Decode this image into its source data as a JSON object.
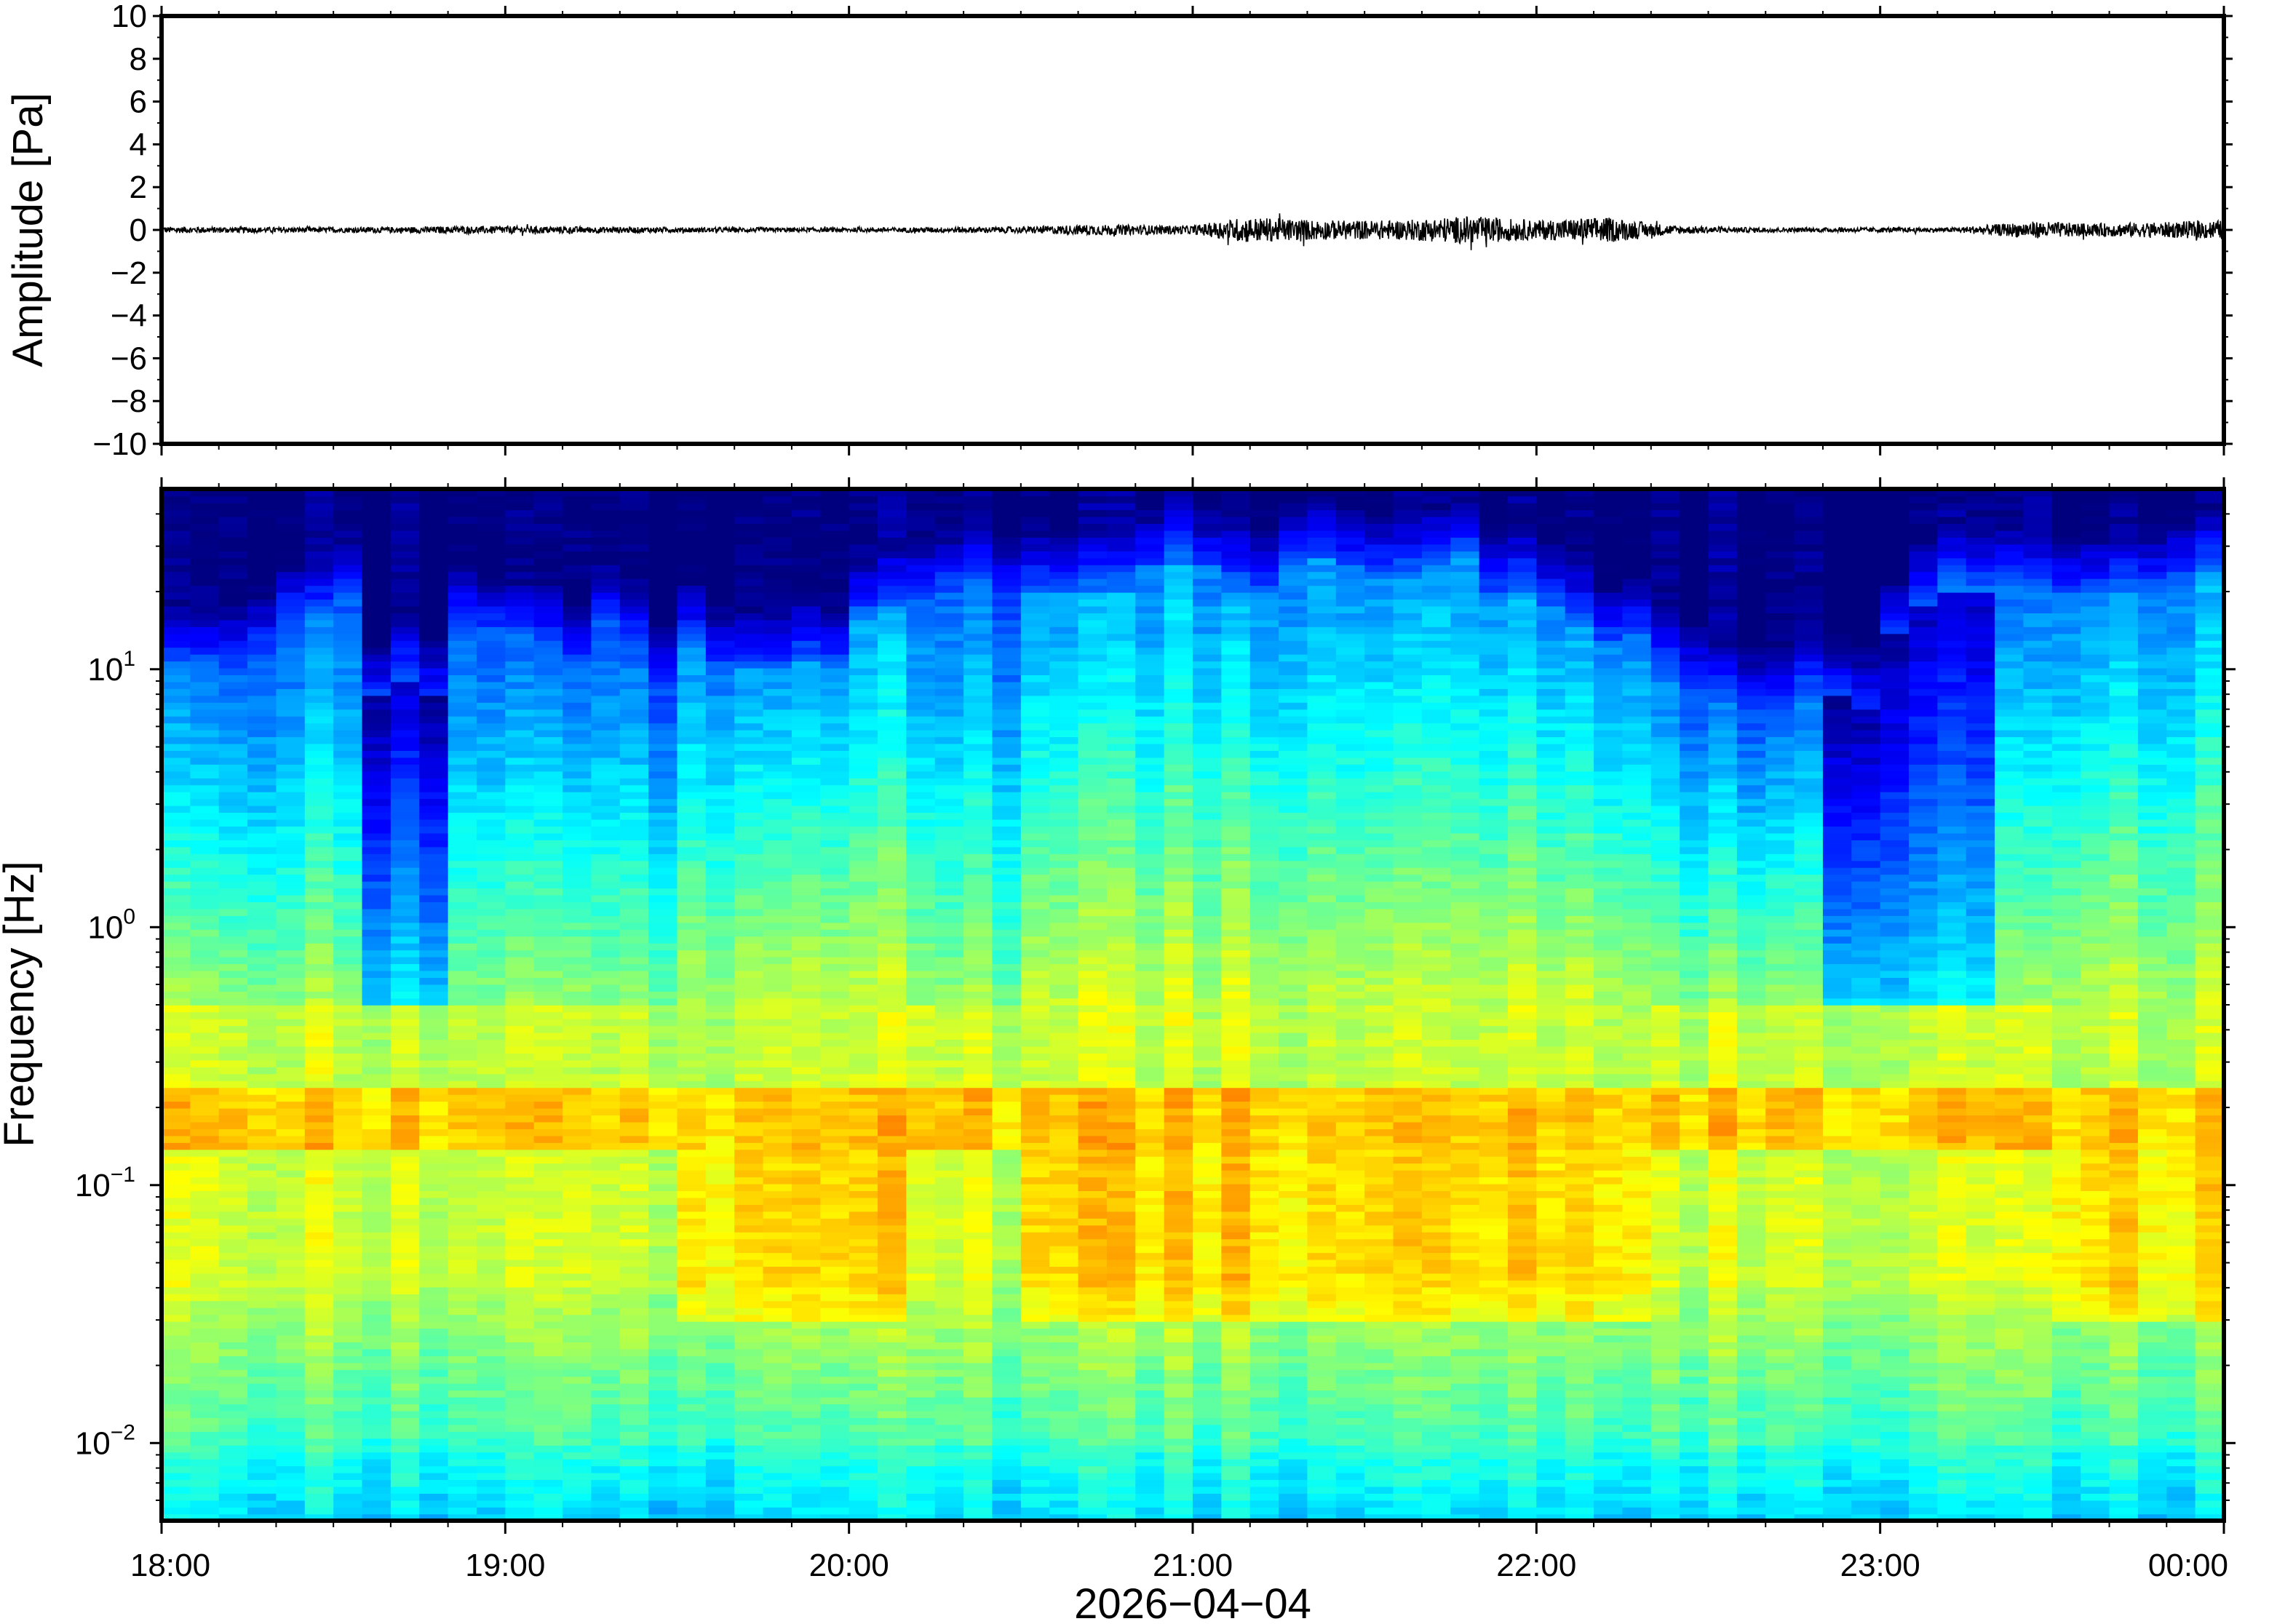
{
  "chart_data": [
    {
      "type": "line",
      "ylabel": "Amplitude [Pa]",
      "ylim": [
        -10,
        10
      ],
      "yticks": [
        "10",
        "8",
        "6",
        "4",
        "2",
        "0",
        "−2",
        "−4",
        "−6",
        "−8",
        "−10"
      ],
      "ytick_values": [
        10,
        8,
        6,
        4,
        2,
        0,
        -2,
        -4,
        -6,
        -8,
        -10
      ],
      "xlim": [
        "18:00",
        "00:00"
      ],
      "grid": false,
      "color": "#000000",
      "series": [
        {
          "envelope_hours": [
            18.0,
            18.5,
            19.0,
            19.5,
            20.0,
            20.5,
            20.7,
            21.0,
            21.15,
            21.4,
            21.6,
            21.8,
            22.0,
            22.2,
            22.4,
            22.6,
            22.8,
            23.0,
            23.2,
            23.45,
            23.6,
            23.8,
            24.0
          ],
          "envelope_pa": [
            0.15,
            0.12,
            0.18,
            0.12,
            0.1,
            0.15,
            0.25,
            0.2,
            0.6,
            0.45,
            0.45,
            0.65,
            0.45,
            0.6,
            0.2,
            0.12,
            0.1,
            0.12,
            0.1,
            0.4,
            0.3,
            0.35,
            0.45
          ]
        }
      ]
    },
    {
      "type": "heatmap",
      "ylabel": "Frequency [Hz]",
      "yscale": "log",
      "ylim": [
        0.005,
        50
      ],
      "yticks": [
        {
          "base": "10",
          "exp": "1",
          "value": 10
        },
        {
          "base": "10",
          "exp": "0",
          "value": 1
        },
        {
          "base": "10",
          "exp": "−1",
          "value": 0.1
        },
        {
          "base": "10",
          "exp": "−2",
          "value": 0.01
        }
      ],
      "xlabel": "2026−04−04",
      "xticks": [
        "18:00",
        "19:00",
        "20:00",
        "21:00",
        "22:00",
        "23:00",
        "00:00"
      ],
      "xlim": [
        "18:00",
        "00:00"
      ],
      "colormap": [
        "#00007f",
        "#0000ff",
        "#007fff",
        "#00ffff",
        "#7fff7f",
        "#ffff00",
        "#ff7f00",
        "#ff0000",
        "#7f0000"
      ],
      "colors": {
        "no_energy": "#00007f"
      },
      "bins_per_hour": 12,
      "energy_cutoff_hz": [
        10,
        10,
        10,
        12,
        16,
        15,
        20,
        8,
        9,
        8,
        15,
        14,
        13,
        12,
        10,
        15,
        12,
        9,
        13,
        11,
        10,
        10,
        11,
        10,
        16,
        17,
        18,
        20,
        20,
        20,
        20,
        20,
        20,
        20,
        25,
        25,
        25,
        20,
        20,
        27,
        27,
        25,
        23,
        23,
        25,
        28,
        20,
        20,
        18,
        15,
        13,
        14,
        10,
        9,
        7,
        7,
        7,
        8,
        8,
        7,
        14,
        18,
        20,
        20,
        20,
        20,
        20,
        20,
        20,
        22,
        24,
        24
      ],
      "peak_band_hz": [
        0.15,
        0.22
      ],
      "active_hours": [
        [
          19.5,
          20.2
        ],
        [
          20.5,
          22.3
        ],
        [
          23.5,
          24.0
        ]
      ],
      "quiet_hours": [
        [
          18.6,
          18.8
        ],
        [
          22.85,
          23.3
        ]
      ]
    }
  ]
}
